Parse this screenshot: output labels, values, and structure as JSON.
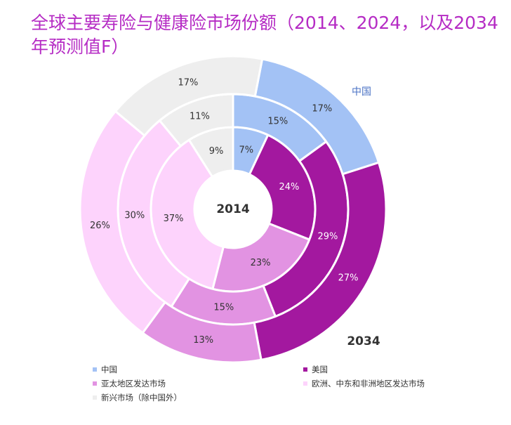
{
  "title": "全球主要寿险与健康险市场份额（2014、2024，以及2034年预测值F）",
  "chart_data": {
    "type": "pie",
    "variant": "nested-donut",
    "title": "全球主要寿险与健康险市场份额（2014、2024，以及2034年预测值F）",
    "center_label": "2014",
    "outer_label": "2034",
    "callout_label": "中国",
    "categories": [
      "中国",
      "美国",
      "亚太地区发达市场",
      "欧洲、中东和非洲地区发达市场",
      "新兴市场（除中国外）"
    ],
    "colors": [
      "#a3c2f5",
      "#a3189f",
      "#e293e2",
      "#fdd3fc",
      "#eeeeee"
    ],
    "label_colors": [
      "#333333",
      "#ffffff",
      "#333333",
      "#333333",
      "#333333"
    ],
    "rings": [
      {
        "year": "2014",
        "values": [
          7,
          24,
          23,
          37,
          9
        ],
        "labels": [
          "7%",
          "24%",
          "23%",
          "37%",
          "9%"
        ]
      },
      {
        "year": "2024",
        "values": [
          15,
          29,
          15,
          30,
          11
        ],
        "labels": [
          "15%",
          "29%",
          "15%",
          "30%",
          "11%"
        ]
      },
      {
        "year": "2034",
        "values": [
          17,
          27,
          13,
          26,
          17
        ],
        "labels": [
          "17%",
          "27%",
          "13%",
          "26%",
          "17%"
        ]
      }
    ]
  },
  "legend": [
    {
      "label": "中国",
      "color": "#a3c2f5"
    },
    {
      "label": "美国",
      "color": "#a3189f"
    },
    {
      "label": "亚太地区发达市场",
      "color": "#e293e2"
    },
    {
      "label": "欧洲、中东和非洲地区发达市场",
      "color": "#fdd3fc"
    },
    {
      "label": "新兴市场（除中国外）",
      "color": "#eeeeee"
    }
  ]
}
